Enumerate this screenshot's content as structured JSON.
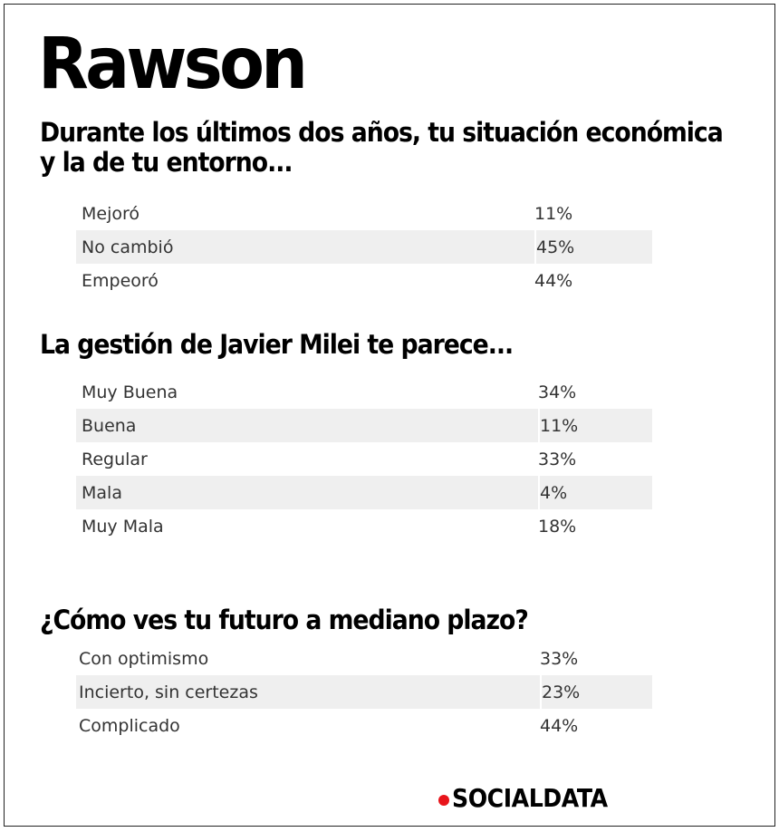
{
  "title": "Rawson",
  "sections": [
    {
      "question": "Durante los últimos dos años, tu situación económica y la de tu entorno...",
      "question_line1": "Durante los últimos dos años, tu situación económica",
      "question_line2": "y la de tu entorno...",
      "rows": [
        {
          "label": "Mejoró",
          "value": "11%"
        },
        {
          "label": "No cambió",
          "value": "45%"
        },
        {
          "label": "Empeoró",
          "value": "44%"
        }
      ]
    },
    {
      "question": "La gestión de Javier Milei te parece...",
      "rows": [
        {
          "label": "Muy Buena",
          "value": "34%"
        },
        {
          "label": "Buena",
          "value": "11%"
        },
        {
          "label": "Regular",
          "value": "33%"
        },
        {
          "label": "Mala",
          "value": "4%"
        },
        {
          "label": "Muy Mala",
          "value": "18%"
        }
      ]
    },
    {
      "question": "¿Cómo ves tu futuro a mediano plazo?",
      "rows": [
        {
          "label": "Con optimismo",
          "value": "33%"
        },
        {
          "label": "Incierto, sin certezas",
          "value": "23%"
        },
        {
          "label": "Complicado",
          "value": "44%"
        }
      ]
    }
  ],
  "brand": {
    "name": "SOCIALDATA",
    "dot_color": "#e8141b"
  },
  "colors": {
    "alt_row": "#efefef",
    "text": "#333333"
  }
}
